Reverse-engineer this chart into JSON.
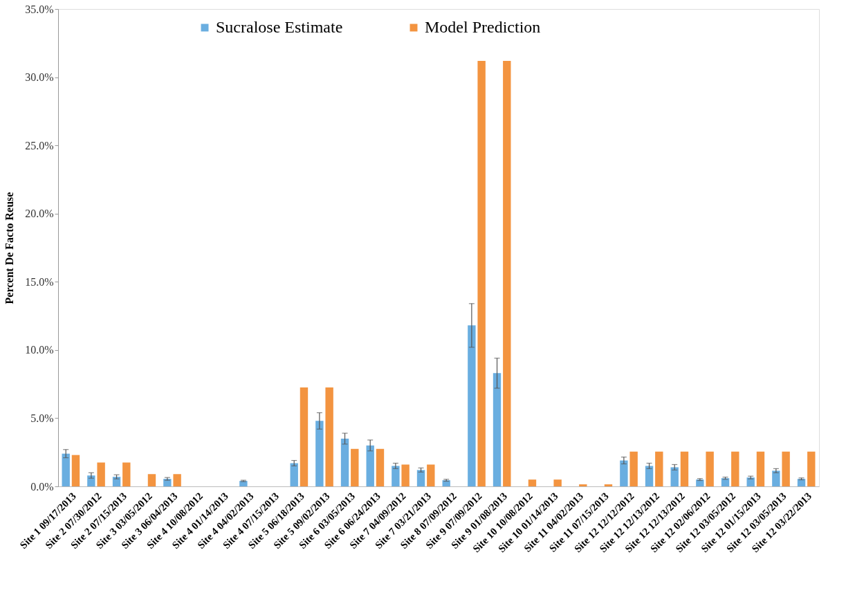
{
  "chart_data": {
    "type": "bar",
    "ylabel": "Percent De Facto Reuse",
    "categories": [
      "Site 1  09/17/2013",
      "Site 2  07/30/2012",
      "Site 2  07/15/2013",
      "Site 3  03/05/2012",
      "Site 3  06/04/2013",
      "Site 4  10/08/2012",
      "Site 4  01/14/2013",
      "Site 4  04/02/2013",
      "Site 4  07/15/2013",
      "Site 5  06/18/2013",
      "Site 5  09/02/2013",
      "Site 6  03/05/2013",
      "Site 6  06/24/2013",
      "Site 7  04/09/2012",
      "Site 7  03/21/2013",
      "Site 8  07/09/2012",
      "Site 9  07/09/2012",
      "Site 9  01/08/2013",
      "Site 10  10/08/2012",
      "Site 10  01/14/2013",
      "Site 11  04/02/2013",
      "Site 11  07/15/2013",
      "Site 12  12/12/2012",
      "Site 12  12/13/2012",
      "Site 12  12/13/2012",
      "Site 12  02/06/2012",
      "Site 12  03/05/2012",
      "Site 12  01/15/2013",
      "Site 12  03/05/2013",
      "Site 12  03/22/2013"
    ],
    "series": [
      {
        "name": "Sucralose Estimate",
        "color": "#6aaee0",
        "values": [
          2.4,
          0.8,
          0.7,
          0,
          0.55,
          0,
          0,
          0.4,
          0,
          1.7,
          4.8,
          3.5,
          3.0,
          1.5,
          1.2,
          0.45,
          11.8,
          8.3,
          0,
          0,
          0,
          0,
          1.9,
          1.5,
          1.4,
          0.5,
          0.6,
          0.65,
          1.15,
          0.55
        ],
        "errors": [
          0.3,
          0.2,
          0.15,
          null,
          0.1,
          null,
          null,
          0.05,
          null,
          0.2,
          0.6,
          0.4,
          0.4,
          0.2,
          0.15,
          0.07,
          1.6,
          1.1,
          null,
          null,
          null,
          null,
          0.25,
          0.2,
          0.2,
          0.07,
          0.08,
          0.1,
          0.15,
          0.07
        ]
      },
      {
        "name": "Model Prediction",
        "color": "#f39440",
        "values": [
          2.3,
          1.75,
          1.75,
          0.9,
          0.9,
          0,
          0,
          0,
          0,
          7.25,
          7.25,
          2.75,
          2.75,
          1.6,
          1.6,
          0,
          31.2,
          31.2,
          0.5,
          0.5,
          0.15,
          0.15,
          2.55,
          2.55,
          2.55,
          2.55,
          2.55,
          2.55,
          2.55,
          2.55
        ]
      }
    ],
    "ylim": [
      0,
      35
    ],
    "yticks": [
      {
        "value": 0,
        "label": "0.0%"
      },
      {
        "value": 5,
        "label": "5.0%"
      },
      {
        "value": 10,
        "label": "10.0%"
      },
      {
        "value": 15,
        "label": "15.0%"
      },
      {
        "value": 20,
        "label": "20.0%"
      },
      {
        "value": 25,
        "label": "25.0%"
      },
      {
        "value": 30,
        "label": "30.0%"
      },
      {
        "value": 35,
        "label": "35.0%"
      }
    ],
    "grid": false,
    "legend": "top"
  }
}
